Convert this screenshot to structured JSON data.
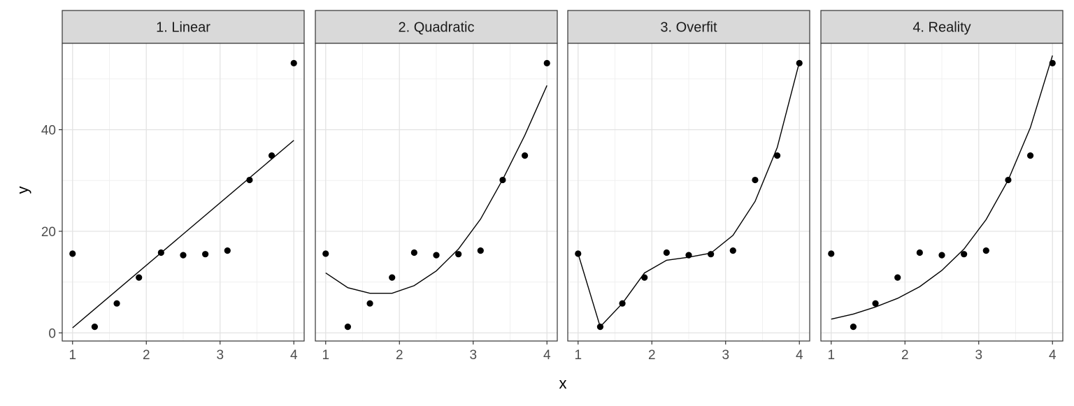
{
  "chart_data": {
    "type": "scatter",
    "xlabel": "x",
    "ylabel": "y",
    "xlim": [
      0.86,
      4.14
    ],
    "ylim": [
      -1.6,
      57.0
    ],
    "x_ticks": [
      1,
      2,
      3,
      4
    ],
    "y_ticks": [
      0,
      20,
      40
    ],
    "x_tick_labels": [
      "1",
      "2",
      "3",
      "4"
    ],
    "y_tick_labels": [
      "0",
      "20",
      "40"
    ],
    "grid": true,
    "points": {
      "x": [
        1.0,
        1.3,
        1.6,
        1.9,
        2.2,
        2.5,
        2.8,
        3.1,
        3.4,
        3.7,
        4.0
      ],
      "y": [
        15.6,
        1.2,
        5.8,
        10.9,
        15.8,
        15.3,
        15.5,
        16.2,
        30.1,
        34.9,
        53.1
      ]
    },
    "panels": [
      {
        "title": "1. Linear",
        "fit_x": [
          1.0,
          4.0
        ],
        "fit_y": [
          1.0,
          37.9
        ]
      },
      {
        "title": "2. Quadratic",
        "fit_x": [
          1.0,
          1.3,
          1.6,
          1.9,
          2.2,
          2.5,
          2.8,
          3.1,
          3.4,
          3.7,
          4.0
        ],
        "fit_y": [
          11.8,
          8.9,
          7.8,
          7.8,
          9.3,
          12.2,
          16.5,
          22.4,
          30.2,
          38.9,
          48.7
        ]
      },
      {
        "title": "3. Overfit",
        "fit_x": [
          1.0,
          1.3,
          1.6,
          1.9,
          2.2,
          2.5,
          2.8,
          3.1,
          3.4,
          3.7,
          4.0
        ],
        "fit_y": [
          15.6,
          1.2,
          5.8,
          11.8,
          14.3,
          14.9,
          15.7,
          19.2,
          25.9,
          36.5,
          53.3
        ]
      },
      {
        "title": "4. Reality",
        "fit_x": [
          1.0,
          1.3,
          1.6,
          1.9,
          2.2,
          2.5,
          2.8,
          3.1,
          3.4,
          3.7,
          4.0
        ],
        "fit_y": [
          2.7,
          3.7,
          5.1,
          6.8,
          9.1,
          12.3,
          16.5,
          22.3,
          30.1,
          40.4,
          54.6
        ]
      }
    ]
  }
}
